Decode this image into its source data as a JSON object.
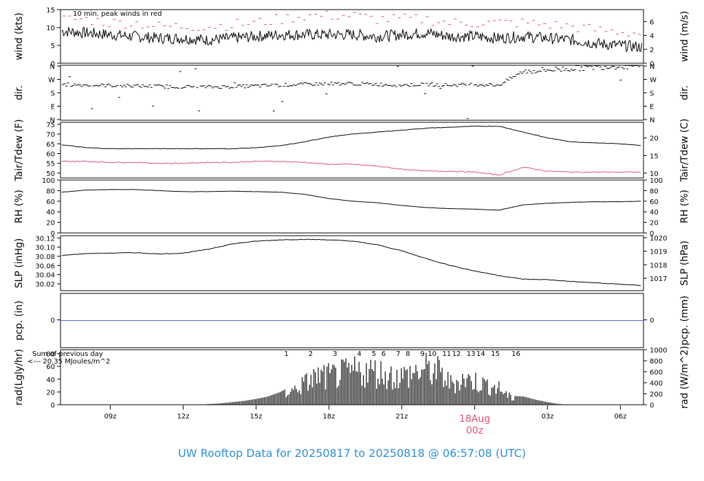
{
  "colors": {
    "frame": "#000000",
    "peak_wind": "#e05070",
    "dewpoint": "#e05070",
    "precip": "#4a6fd0",
    "radiation": "#1a1a1a",
    "rad_annotation": "#a040e0",
    "date_label": "#e05070",
    "footer": "#2e8fd4"
  },
  "footer_title": "UW Rooftop Data for 20250817  to  20250818 @ 06:57:08  (UTC)",
  "x_axis": {
    "ticks": [
      {
        "label": "09z",
        "hour": 9
      },
      {
        "label": "12z",
        "hour": 12
      },
      {
        "label": "15z",
        "hour": 15
      },
      {
        "label": "18z",
        "hour": 18
      },
      {
        "label": "21z",
        "hour": 21
      },
      {
        "label": "03z",
        "hour": 27
      },
      {
        "label": "06z",
        "hour": 30
      }
    ],
    "date_marker": {
      "line1": "18Aug",
      "line2": "00z",
      "hour": 24
    },
    "range_hours": [
      6.95,
      30.95
    ]
  },
  "chart_data": [
    {
      "type": "line",
      "ylabel_left": "wind (kts)",
      "ylabel_right": "wind (m/s)",
      "ylim": [
        0,
        15
      ],
      "yticks_left": [
        "0",
        "5",
        "10",
        "15"
      ],
      "yticks_right": [
        "0",
        "2",
        "4",
        "6"
      ],
      "annotation": "10 min. peak winds in red",
      "series": [
        {
          "x": [
            7,
            8,
            9,
            10,
            11,
            12,
            13,
            14,
            15,
            16,
            17,
            18,
            19,
            20,
            21,
            22,
            23,
            24,
            25,
            26,
            27,
            28,
            29,
            30,
            30.9
          ],
          "values": [
            9,
            8.5,
            8,
            7.5,
            7,
            7,
            6.5,
            7,
            7.5,
            8,
            8,
            8,
            8,
            7.5,
            8,
            8.5,
            7.5,
            7.5,
            7,
            7.5,
            7,
            6.5,
            5.5,
            5,
            4.5
          ]
        },
        {
          "name": "10 min. peak winds",
          "x": [
            7,
            8,
            9,
            10,
            11,
            12,
            13,
            14,
            15,
            16,
            17,
            18,
            19,
            20,
            21,
            22,
            23,
            24,
            25,
            26,
            27,
            28,
            29,
            30,
            30.9
          ],
          "values": [
            12,
            12,
            11,
            11,
            10,
            10,
            10,
            10.5,
            11,
            12,
            13,
            13,
            13,
            12,
            12,
            12,
            11,
            11,
            11,
            11,
            10.5,
            10,
            9,
            8.5,
            8
          ]
        }
      ]
    },
    {
      "type": "scatter",
      "ylabel_left": "dir.",
      "ylabel_right": "dir.",
      "ylim": [
        0,
        360
      ],
      "yticks_left": [
        "N",
        "E",
        "S",
        "W",
        "N"
      ],
      "yticks_right": [
        "N",
        "E",
        "S",
        "W",
        "N"
      ],
      "series": [
        {
          "x": [
            7,
            8,
            9,
            10,
            11,
            12,
            13,
            14,
            15,
            16,
            17,
            18,
            19,
            20,
            21,
            22,
            23,
            24,
            25,
            26,
            27,
            28,
            29,
            30,
            30.9
          ],
          "values": [
            235,
            230,
            228,
            225,
            222,
            220,
            218,
            220,
            225,
            230,
            235,
            240,
            240,
            235,
            230,
            235,
            230,
            235,
            230,
            320,
            330,
            340,
            350,
            355,
            355
          ]
        }
      ]
    },
    {
      "type": "line",
      "ylabel_left": "Tair/Tdew (F)",
      "ylabel_right": "Tair/Tdew (C)",
      "ylim": [
        47.5,
        76
      ],
      "yticks_left": [
        "50",
        "55",
        "60",
        "65",
        "70",
        "75"
      ],
      "yticks_right": [
        "10",
        "15",
        "20"
      ],
      "series": [
        {
          "x": [
            7,
            8,
            9,
            10,
            11,
            12,
            13,
            14,
            15,
            16,
            17,
            18,
            19,
            20,
            21,
            22,
            23,
            24,
            25,
            26,
            27,
            28,
            29,
            30,
            30.9
          ],
          "values": [
            64.5,
            63,
            62.5,
            62.5,
            62.5,
            62.5,
            62.5,
            62.5,
            63,
            64,
            66,
            68.5,
            70,
            71,
            72,
            73,
            73.5,
            74,
            74,
            71,
            68,
            66,
            65.5,
            65,
            64
          ]
        },
        {
          "x": [
            7,
            8,
            9,
            10,
            11,
            12,
            13,
            14,
            15,
            16,
            17,
            18,
            19,
            20,
            21,
            22,
            23,
            24,
            25,
            26,
            27,
            28,
            29,
            30,
            30.9
          ],
          "values": [
            56,
            56,
            55.5,
            55.5,
            55,
            55,
            55.5,
            55.5,
            56,
            56,
            55.5,
            54.5,
            54.5,
            53.5,
            52,
            51,
            51,
            50.5,
            49,
            53,
            51,
            50.5,
            50.5,
            50.5,
            50.5
          ]
        }
      ]
    },
    {
      "type": "line",
      "ylabel_left": "RH (%)",
      "ylabel_right": "RH (%)",
      "ylim": [
        0,
        100
      ],
      "yticks_left": [
        "0",
        "20",
        "40",
        "60",
        "80",
        "100"
      ],
      "yticks_right": [
        "0",
        "20",
        "40",
        "60",
        "80",
        "100"
      ],
      "series": [
        {
          "x": [
            7,
            8,
            9,
            10,
            11,
            12,
            13,
            14,
            15,
            16,
            17,
            18,
            19,
            20,
            21,
            22,
            23,
            24,
            25,
            26,
            27,
            28,
            29,
            30,
            30.9
          ],
          "values": [
            77,
            81,
            82,
            82,
            80,
            78,
            78,
            79,
            78,
            77,
            73,
            65,
            60,
            57,
            52,
            48,
            46,
            45,
            43,
            53,
            56,
            58,
            59,
            59,
            60
          ]
        }
      ]
    },
    {
      "type": "line",
      "ylabel_left": "SLP (inHg)",
      "ylabel_right": "SLP (hPa)",
      "ylim": [
        30.005,
        30.125
      ],
      "yticks_left": [
        "30.02",
        "30.04",
        "30.06",
        "30.08",
        "30.10",
        "30.12"
      ],
      "yticks_right": [
        "1017",
        "1018",
        "1019",
        "1020"
      ],
      "series": [
        {
          "x": [
            7,
            8,
            9,
            10,
            11,
            12,
            13,
            14,
            15,
            16,
            17,
            18,
            19,
            20,
            21,
            22,
            23,
            24,
            25,
            26,
            27,
            28,
            29,
            30,
            30.9
          ],
          "values": [
            30.082,
            30.086,
            30.087,
            30.088,
            30.085,
            30.087,
            30.095,
            30.107,
            30.113,
            30.116,
            30.117,
            30.116,
            30.113,
            30.105,
            30.092,
            30.075,
            30.06,
            30.048,
            30.038,
            30.03,
            30.029,
            30.025,
            30.022,
            30.019,
            30.016
          ]
        }
      ]
    },
    {
      "type": "line",
      "ylabel_left": "pcp. (in)",
      "ylabel_right": "pcp. (mm)",
      "ylim": [
        -1,
        1
      ],
      "yticks_left": [
        "0"
      ],
      "yticks_right": [
        "0"
      ],
      "series": [
        {
          "x": [
            6.95,
            30.95
          ],
          "values": [
            0,
            0
          ]
        }
      ]
    },
    {
      "type": "bar",
      "ylabel_left": "rad(Lgly/hr)",
      "ylabel_right": "rad (W/m^2)",
      "ylim": [
        0,
        86
      ],
      "yticks_left": [
        "0",
        "20",
        "40",
        "60",
        "80"
      ],
      "yticks_right": [
        "0",
        "200",
        "400",
        "600",
        "800",
        "1000"
      ],
      "annotation_line1": "Sum of previous day",
      "annotation_line2": "<--- 20.35 MJoules/m^2",
      "hour_labels": [
        "1",
        "2",
        "3",
        "4",
        "5",
        "6",
        "7",
        "8",
        "9",
        "10",
        "11",
        "12",
        "13",
        "14",
        "15",
        "16"
      ],
      "hour_label_x": [
        16.25,
        17.25,
        18.25,
        19.25,
        19.85,
        20.25,
        20.85,
        21.25,
        21.85,
        22.25,
        22.85,
        23.25,
        23.85,
        24.25,
        24.85,
        25.7
      ],
      "x": [
        13,
        13.5,
        14,
        14.5,
        15,
        15.5,
        16,
        16.5,
        17,
        17.5,
        18,
        18.5,
        19,
        19.5,
        20,
        20.5,
        21,
        21.5,
        22,
        22.5,
        23,
        23.5,
        24,
        24.5,
        25,
        25.5,
        26,
        26.5,
        27,
        27.5
      ],
      "values": [
        1,
        2,
        4,
        6,
        9,
        13,
        20,
        30,
        45,
        60,
        60,
        65,
        70,
        72,
        70,
        62,
        60,
        68,
        75,
        70,
        45,
        55,
        50,
        42,
        35,
        14,
        13,
        8,
        4,
        1
      ]
    }
  ]
}
